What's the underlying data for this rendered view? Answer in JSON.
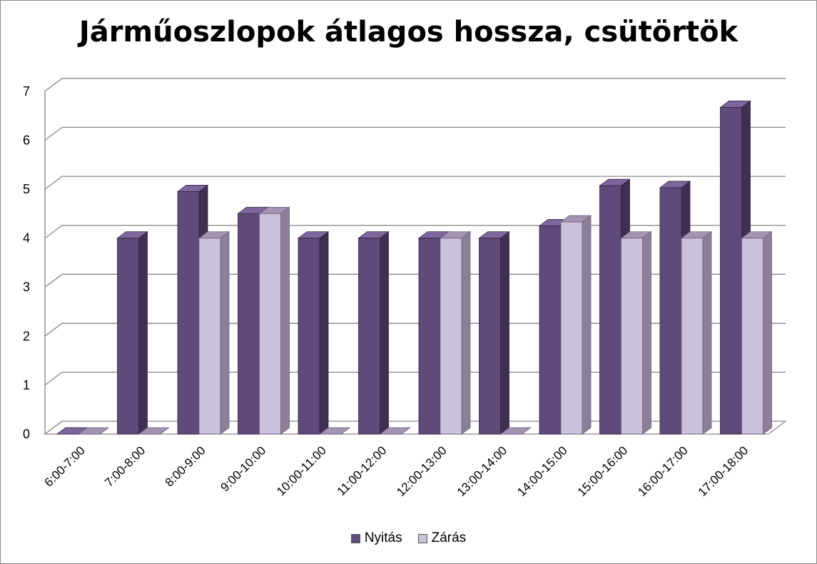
{
  "chart_data": {
    "type": "bar",
    "title": "Járműoszlopok átlagos hossza, csütörtök",
    "categories": [
      "6:00-7:00",
      "7:00-8:00",
      "8:00-9:00",
      "9:00-10:00",
      "10:00-11:00",
      "11:00-12:00",
      "12:00-13:00",
      "13:00-14:00",
      "14:00-15:00",
      "15:00-16:00",
      "16:00-17:00",
      "17:00-18:00"
    ],
    "series": [
      {
        "name": "Nyitás",
        "color": "#604a7b",
        "values": [
          0,
          4,
          4.95,
          4.5,
          4,
          4,
          4,
          4,
          4.25,
          5.07,
          5.03,
          6.67
        ]
      },
      {
        "name": "Zárás",
        "color": "#ccc1da",
        "values": [
          0,
          0,
          4,
          4.5,
          0,
          0,
          4,
          0,
          4.33,
          4,
          4,
          4
        ]
      }
    ],
    "yticks": [
      "0",
      "1",
      "2",
      "3",
      "4",
      "5",
      "6",
      "7"
    ],
    "ylim": [
      0,
      7
    ],
    "grid": true,
    "legend_position": "bottom"
  }
}
